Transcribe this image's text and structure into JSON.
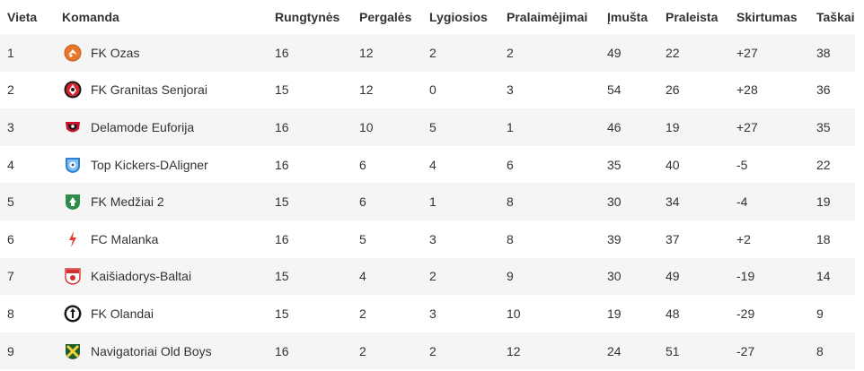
{
  "headers": {
    "pos": "Vieta",
    "team": "Komanda",
    "mp": "Rungtynės",
    "w": "Pergalės",
    "d": "Lygiosios",
    "l": "Pralaimėjimai",
    "gf": "Įmušta",
    "ga": "Praleista",
    "gd": "Skirtumas",
    "pts": "Taškai"
  },
  "rows": [
    {
      "pos": "1",
      "team": "FK Ozas",
      "logo": "ozas-logo-icon",
      "mp": "16",
      "w": "12",
      "d": "2",
      "l": "2",
      "gf": "49",
      "ga": "22",
      "gd": "+27",
      "pts": "38"
    },
    {
      "pos": "2",
      "team": "FK Granitas Senjorai",
      "logo": "granitas-logo-icon",
      "mp": "15",
      "w": "12",
      "d": "0",
      "l": "3",
      "gf": "54",
      "ga": "26",
      "gd": "+28",
      "pts": "36"
    },
    {
      "pos": "3",
      "team": "Delamode Euforija",
      "logo": "euforija-logo-icon",
      "mp": "16",
      "w": "10",
      "d": "5",
      "l": "1",
      "gf": "46",
      "ga": "19",
      "gd": "+27",
      "pts": "35"
    },
    {
      "pos": "4",
      "team": "Top Kickers-DAligner",
      "logo": "top-kickers-logo-icon",
      "mp": "16",
      "w": "6",
      "d": "4",
      "l": "6",
      "gf": "35",
      "ga": "40",
      "gd": "-5",
      "pts": "22"
    },
    {
      "pos": "5",
      "team": "FK Medžiai 2",
      "logo": "medziai-logo-icon",
      "mp": "15",
      "w": "6",
      "d": "1",
      "l": "8",
      "gf": "30",
      "ga": "34",
      "gd": "-4",
      "pts": "19"
    },
    {
      "pos": "6",
      "team": "FC Malanka",
      "logo": "malanka-logo-icon",
      "mp": "16",
      "w": "5",
      "d": "3",
      "l": "8",
      "gf": "39",
      "ga": "37",
      "gd": "+2",
      "pts": "18"
    },
    {
      "pos": "7",
      "team": "Kaišiadorys-Baltai",
      "logo": "baltai-logo-icon",
      "mp": "15",
      "w": "4",
      "d": "2",
      "l": "9",
      "gf": "30",
      "ga": "49",
      "gd": "-19",
      "pts": "14"
    },
    {
      "pos": "8",
      "team": "FK Olandai",
      "logo": "olandai-logo-icon",
      "mp": "15",
      "w": "2",
      "d": "3",
      "l": "10",
      "gf": "19",
      "ga": "48",
      "gd": "-29",
      "pts": "9"
    },
    {
      "pos": "9",
      "team": "Navigatoriai Old Boys",
      "logo": "navigatoriai-logo-icon",
      "mp": "16",
      "w": "2",
      "d": "2",
      "l": "12",
      "gf": "24",
      "ga": "51",
      "gd": "-27",
      "pts": "8"
    }
  ],
  "colors": {
    "row_stripe": "#f5f5f5",
    "text": "#333333"
  }
}
